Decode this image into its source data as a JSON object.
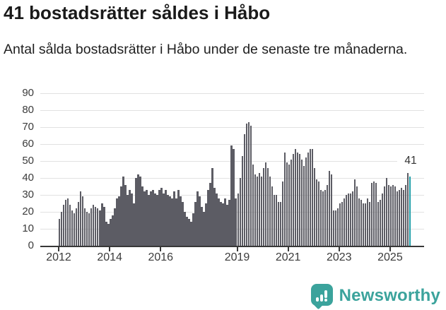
{
  "title": "41 bostadsrätter såldes i Håbo",
  "subtitle": "Antal sålda bostadsrätter i Håbo under de senaste tre månaderna.",
  "logo": {
    "text": "Newsworthy"
  },
  "colors": {
    "bar": "#5c5c64",
    "highlight": "#1f9fa9",
    "brand": "#3ba39c",
    "gridline": "#e1e1e1",
    "axis_text": "#3b3b3b",
    "baseline": "#383838",
    "title_text": "#1a1a1a"
  },
  "chart_data": {
    "type": "bar",
    "title": "41 bostadsrätter såldes i Håbo",
    "subtitle": "Antal sålda bostadsrätter i Håbo under de senaste tre månaderna.",
    "unit": "sålda bostadsrätter per 3-månadersperiod",
    "start_month": "2012-01",
    "frequency": "monthly",
    "ylim": [
      0,
      90
    ],
    "y_ticks": [
      0,
      10,
      20,
      30,
      40,
      50,
      60,
      70,
      80,
      90
    ],
    "grid": true,
    "x_ticks": [
      {
        "label": "2012",
        "month_index": 0
      },
      {
        "label": "2014",
        "month_index": 24
      },
      {
        "label": "2016",
        "month_index": 48
      },
      {
        "label": "2019",
        "month_index": 84
      },
      {
        "label": "2021",
        "month_index": 108
      },
      {
        "label": "2023",
        "month_index": 132
      },
      {
        "label": "2025",
        "month_index": 156
      }
    ],
    "values": [
      16,
      20,
      24,
      27,
      28,
      24,
      21,
      19,
      22,
      26,
      32,
      29,
      22,
      20,
      19,
      22,
      24,
      23,
      22,
      21,
      25,
      23,
      14,
      13,
      16,
      18,
      22,
      28,
      29,
      35,
      41,
      36,
      30,
      33,
      31,
      25,
      40,
      42,
      41,
      35,
      32,
      33,
      30,
      32,
      33,
      31,
      30,
      33,
      34,
      31,
      33,
      30,
      29,
      28,
      32,
      28,
      33,
      29,
      26,
      20,
      17,
      16,
      14,
      19,
      26,
      32,
      29,
      23,
      20,
      25,
      33,
      37,
      46,
      34,
      31,
      28,
      26,
      25,
      28,
      24,
      27,
      59,
      57,
      28,
      31,
      40,
      53,
      66,
      72,
      73,
      71,
      48,
      42,
      41,
      43,
      41,
      46,
      49,
      46,
      41,
      35,
      30,
      30,
      26,
      26,
      38,
      55,
      49,
      48,
      51,
      54,
      57,
      55,
      54,
      51,
      47,
      52,
      55,
      57,
      57,
      46,
      39,
      38,
      33,
      32,
      33,
      36,
      44,
      42,
      21,
      21,
      22,
      25,
      26,
      28,
      30,
      31,
      31,
      32,
      39,
      35,
      28,
      27,
      25,
      25,
      28,
      26,
      37,
      38,
      37,
      26,
      27,
      31,
      35,
      40,
      36,
      35,
      36,
      35,
      32,
      33,
      34,
      33,
      36,
      43,
      41
    ],
    "highlight_last_bar": true,
    "highlight_label": "41",
    "legend": null
  }
}
